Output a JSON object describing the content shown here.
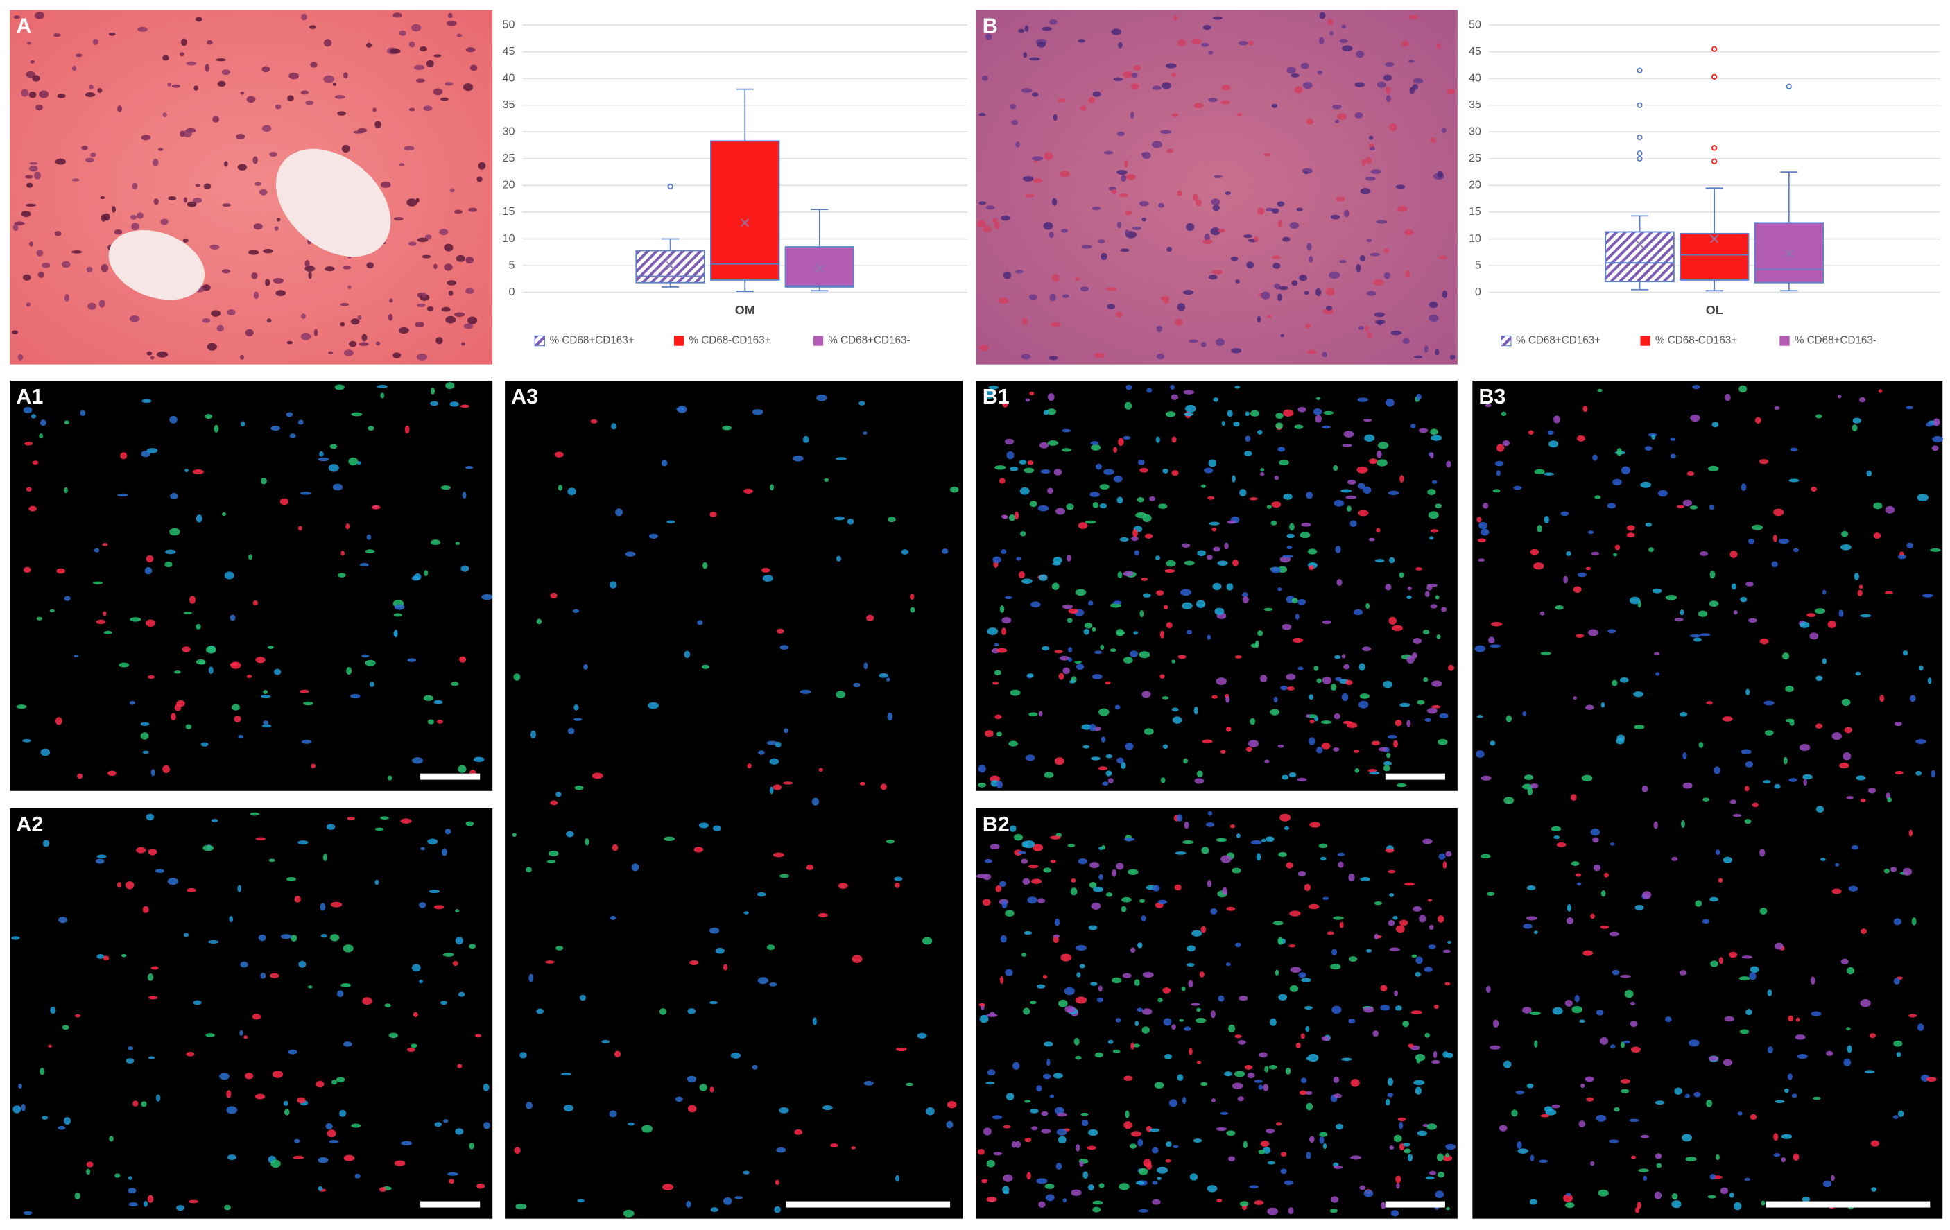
{
  "panels": [
    {
      "label": "A"
    },
    {
      "label": "B"
    },
    {
      "label": "A1"
    },
    {
      "label": "A2"
    },
    {
      "label": "A3"
    },
    {
      "label": "B1"
    },
    {
      "label": "B2"
    },
    {
      "label": "B3"
    }
  ],
  "chart_data": [
    {
      "type": "box",
      "categories": [
        "OM"
      ],
      "ylim": [
        0,
        50
      ],
      "yticks": [
        0,
        5,
        10,
        15,
        20,
        25,
        30,
        35,
        40,
        45,
        50
      ],
      "grid": true,
      "legend": "bottom",
      "outline_color": "#5a7fc8",
      "series": [
        {
          "name": "% CD68+CD163+",
          "color": "#7d5cb5",
          "pattern": "hatch",
          "min": 1,
          "q1": 1.8,
          "median": 3,
          "q3": 7.8,
          "max": 10,
          "mean": 5,
          "outliers": [
            19.8
          ]
        },
        {
          "name": "% CD68-CD163+",
          "color": "#ff1a1a",
          "min": 0.2,
          "q1": 2.3,
          "median": 5.3,
          "q3": 28.3,
          "max": 38,
          "mean": 13,
          "outliers": []
        },
        {
          "name": "% CD68+CD163-",
          "color": "#b35cb3",
          "min": 0.3,
          "q1": 1,
          "median": 1.2,
          "q3": 8.5,
          "max": 15.5,
          "mean": 4.5,
          "outliers": []
        }
      ]
    },
    {
      "type": "box",
      "categories": [
        "OL"
      ],
      "ylim": [
        0,
        50
      ],
      "yticks": [
        0,
        5,
        10,
        15,
        20,
        25,
        30,
        35,
        40,
        45,
        50
      ],
      "grid": true,
      "legend": "bottom",
      "outline_color": "#5a7fc8",
      "series": [
        {
          "name": "% CD68+CD163+",
          "color": "#7d5cb5",
          "pattern": "hatch",
          "min": 0.5,
          "q1": 2,
          "median": 5.5,
          "q3": 11.3,
          "max": 14.3,
          "mean": 9,
          "outliers": [
            25,
            26,
            29,
            35,
            41.5
          ]
        },
        {
          "name": "% CD68-CD163+",
          "color": "#ff1a1a",
          "min": 0.3,
          "q1": 2.3,
          "median": 7,
          "q3": 11,
          "max": 19.5,
          "mean": 10,
          "outliers": [
            24.5,
            27,
            40.3,
            45.5
          ]
        },
        {
          "name": "% CD68+CD163-",
          "color": "#b35cb3",
          "min": 0.3,
          "q1": 1.8,
          "median": 4.3,
          "q3": 13,
          "max": 22.5,
          "mean": 7.3,
          "outliers": [
            38.5
          ]
        }
      ]
    }
  ]
}
